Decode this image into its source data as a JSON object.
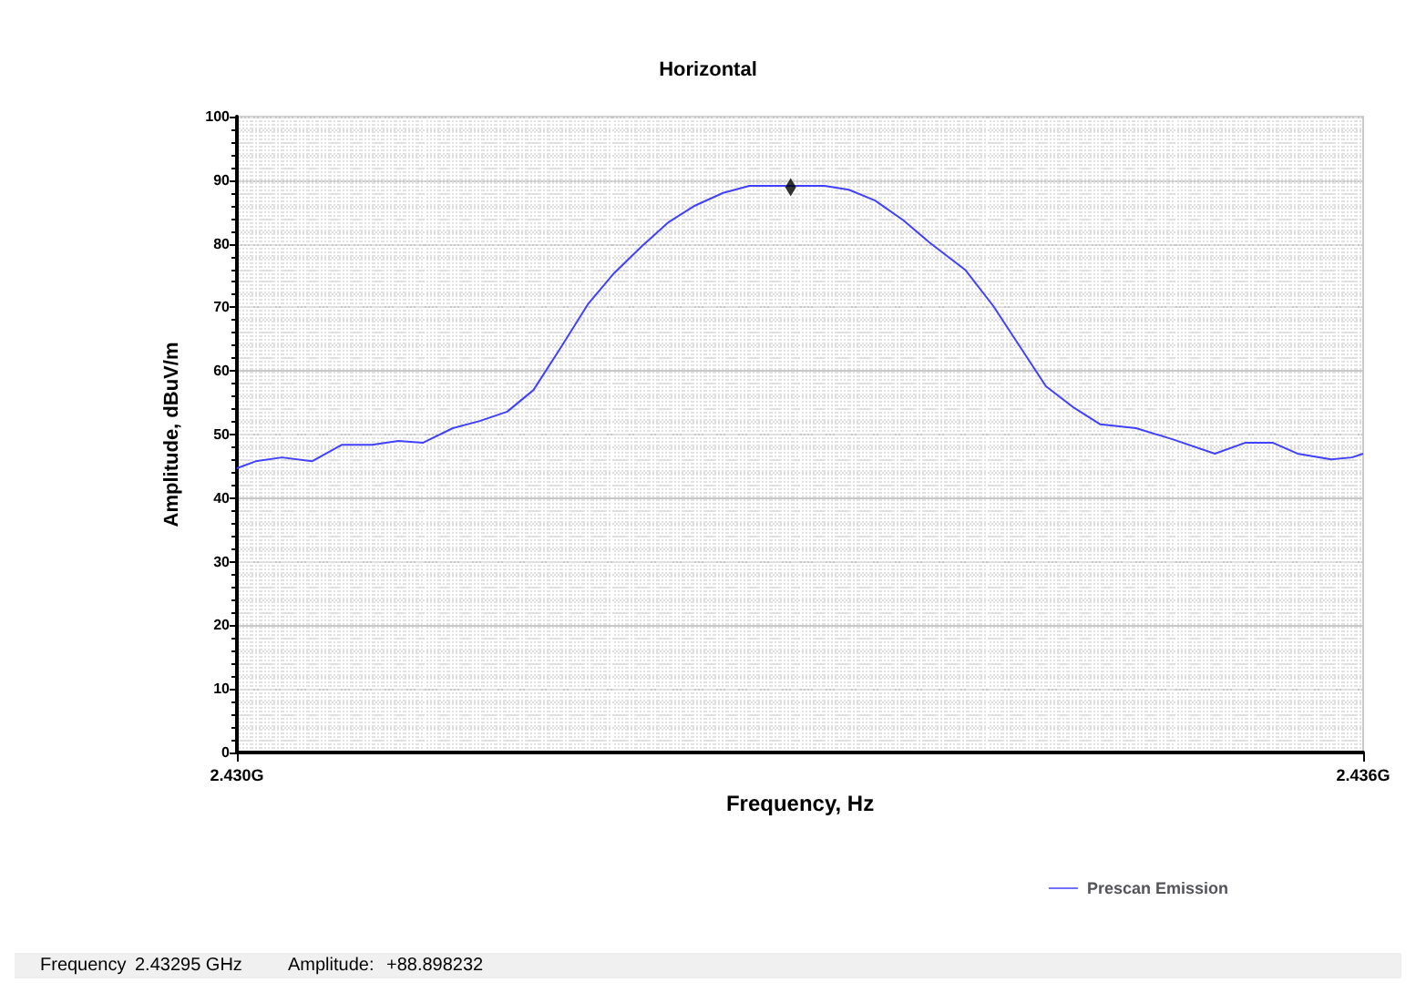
{
  "chart_data": {
    "type": "line",
    "title": "Horizontal",
    "xlabel": "Frequency, Hz",
    "ylabel": "Amplitude, dBuV/m",
    "xlim": [
      2.43,
      2.436
    ],
    "xticks": [
      {
        "value": 2.43,
        "label": "2.430G"
      },
      {
        "value": 2.436,
        "label": "2.436G"
      }
    ],
    "ylim": [
      0,
      100
    ],
    "yticks": [
      0,
      10,
      20,
      30,
      40,
      50,
      60,
      70,
      80,
      90,
      100
    ],
    "grid": true,
    "legend": "bottom right",
    "marker": "none",
    "line_style": "solid",
    "series": [
      {
        "name": "Prescan Emission",
        "color": "#4040ff",
        "x": [
          2.43,
          2.4301,
          2.43024,
          2.4304,
          2.43056,
          2.43072,
          2.43086,
          2.43099,
          2.43115,
          2.43129,
          2.43144,
          2.43158,
          2.43173,
          2.43187,
          2.43201,
          2.43216,
          2.4323,
          2.43244,
          2.43259,
          2.43273,
          2.43295,
          2.43313,
          2.43326,
          2.4334,
          2.43355,
          2.43369,
          2.43388,
          2.43403,
          2.43417,
          2.43431,
          2.43446,
          2.4346,
          2.43479,
          2.43498,
          2.43521,
          2.43537,
          2.43552,
          2.43565,
          2.43583,
          2.43594,
          2.436
        ],
        "values": [
          44.7,
          45.8,
          46.4,
          45.8,
          48.4,
          48.4,
          49,
          48.7,
          51,
          52.1,
          53.6,
          57,
          63.9,
          70.5,
          75.4,
          79.7,
          83.4,
          86,
          88,
          89.1,
          89.1,
          89.1,
          88.5,
          86.8,
          83.7,
          80.2,
          75.9,
          70.2,
          63.9,
          57.6,
          54.2,
          51.6,
          51,
          49.3,
          47,
          48.7,
          48.7,
          47,
          46.1,
          46.4,
          47
        ]
      },
      {
        "type": "scatter",
        "marker": "diamond",
        "color": "#000000",
        "x": [
          2.43295
        ],
        "values": [
          88.9
        ]
      }
    ],
    "annotations": [
      "Frequency",
      "2.43295 GHz",
      "Amplitude:",
      "+88.898232"
    ]
  }
}
